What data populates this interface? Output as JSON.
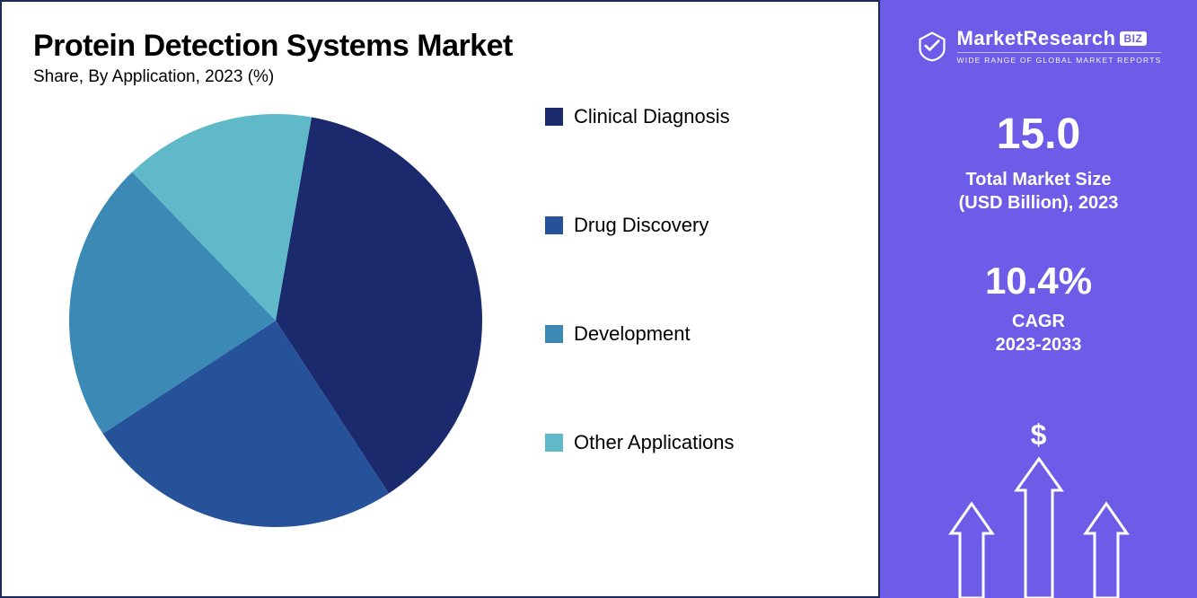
{
  "main": {
    "title": "Protein Detection Systems Market",
    "subtitle": "Share, By Application, 2023 (%)",
    "chart": {
      "type": "pie",
      "background_color": "#ffffff",
      "border_color": "#1a2a52",
      "slices": [
        {
          "label": "Clinical Diagnosis",
          "value": 38,
          "color": "#1a2a6c"
        },
        {
          "label": "Drug Discovery",
          "value": 25,
          "color": "#26529a"
        },
        {
          "label": "Development",
          "value": 22,
          "color": "#3a8ab5"
        },
        {
          "label": "Other Applications",
          "value": 15,
          "color": "#5fb9c9"
        }
      ],
      "start_angle_deg": -80,
      "radius": 230,
      "legend_fontsize": 22,
      "title_fontsize": 34,
      "subtitle_fontsize": 19
    }
  },
  "side": {
    "background_color": "#6c5ce7",
    "text_color": "#ffffff",
    "brand": {
      "name": "MarketResearch",
      "suffix": "BIZ",
      "tagline": "WIDE RANGE OF GLOBAL MARKET REPORTS"
    },
    "market_size": {
      "value": "15.0",
      "label_line1": "Total Market Size",
      "label_line2": "(USD Billion), 2023"
    },
    "cagr": {
      "value": "10.4%",
      "label_line1": "CAGR",
      "label_line2": "2023-2033"
    },
    "dollar_symbol": "$"
  }
}
